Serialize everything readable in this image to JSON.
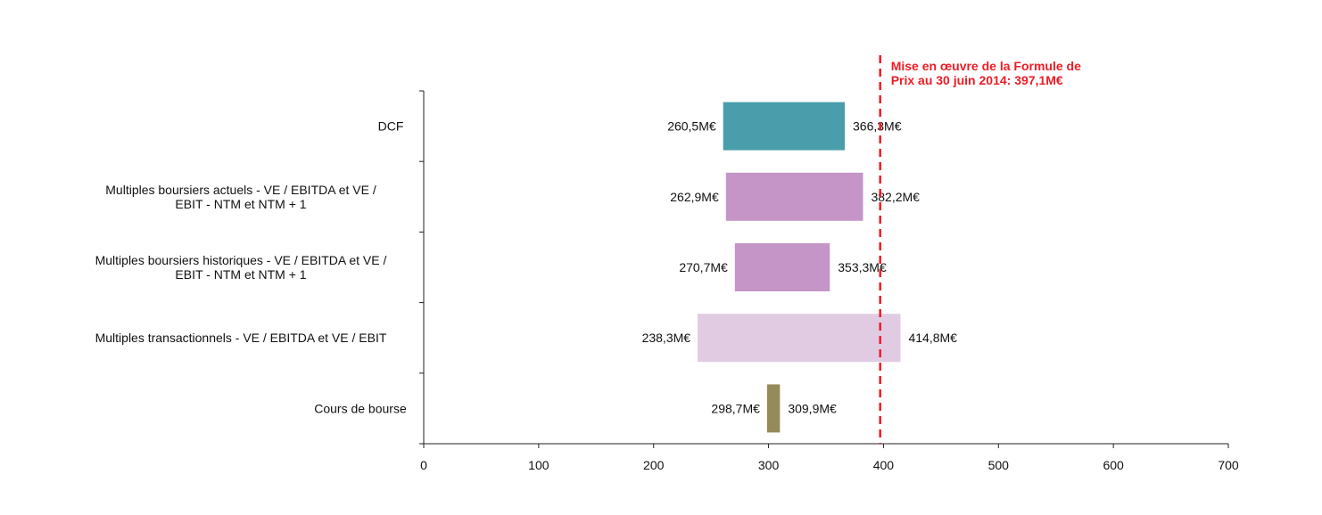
{
  "chart_data": {
    "type": "bar",
    "orientation": "horizontal",
    "subtype": "floating-range",
    "categories": [
      "DCF",
      "Multiples boursiers actuels - VE / EBITDA et VE / EBIT - NTM et NTM + 1",
      "Multiples boursiers historiques - VE / EBITDA et VE / EBIT - NTM et NTM + 1",
      "Multiples transactionnels - VE / EBITDA et VE / EBIT",
      "Cours de bourse"
    ],
    "category_lines": [
      [
        "DCF"
      ],
      [
        "Multiples boursiers actuels - VE / EBITDA et VE /",
        "EBIT - NTM et NTM + 1"
      ],
      [
        "Multiples boursiers historiques - VE / EBITDA et VE /",
        "EBIT - NTM et NTM + 1"
      ],
      [
        "Multiples transactionnels - VE / EBITDA et VE / EBIT"
      ],
      [
        "Cours de bourse"
      ]
    ],
    "low": [
      260.5,
      262.9,
      270.7,
      238.3,
      298.7
    ],
    "high": [
      366.3,
      382.2,
      353.3,
      414.8,
      309.9
    ],
    "low_labels": [
      "260,5M€",
      "262,9M€",
      "270,7M€",
      "238,3M€",
      "298,7M€"
    ],
    "high_labels": [
      "366,3M€",
      "382,2M€",
      "353,3M€",
      "414,8M€",
      "309,9M€"
    ],
    "colors": [
      "#4a9dab",
      "#c595c7",
      "#c595c7",
      "#e1cbe3",
      "#958b58"
    ],
    "xlim": [
      0,
      700
    ],
    "xticks": [
      0,
      100,
      200,
      300,
      400,
      500,
      600,
      700
    ],
    "xtick_labels": [
      "0",
      "100",
      "200",
      "300",
      "400",
      "500",
      "600",
      "700"
    ],
    "xlabel": "",
    "ylabel": "",
    "title": "",
    "grid": false,
    "reference_line": {
      "value": 397.1,
      "color": "#ee1c25",
      "style": "dashed",
      "label_lines": [
        "Mise en œuvre de la Formule de",
        "Prix au 30 juin 2014: 397,1M€"
      ]
    }
  }
}
